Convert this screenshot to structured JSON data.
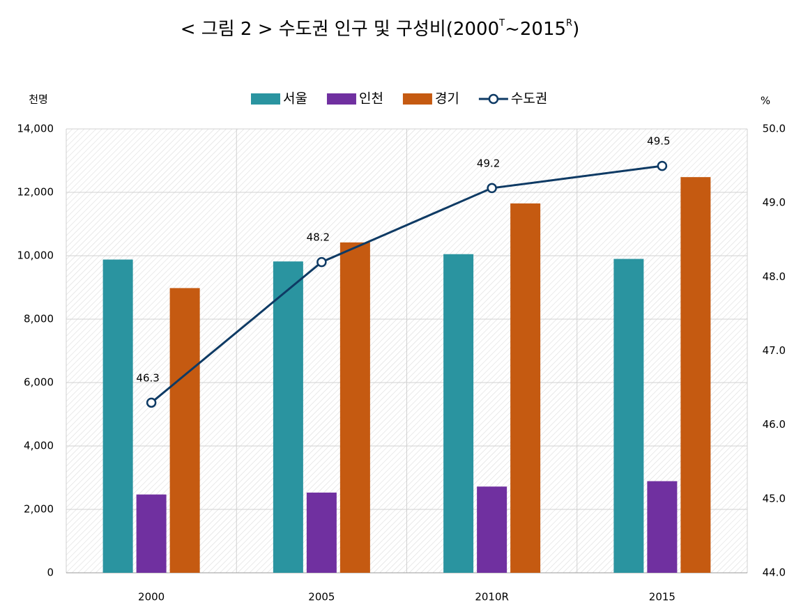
{
  "chart_data": {
    "type": "bar_line",
    "title": [
      "< 그림 2 > 수도권 인구 및 구성비(2000",
      "T",
      "~2015",
      "R",
      ")"
    ],
    "y_label": "천명",
    "y2_label": "%",
    "categories": [
      "2000",
      "2005",
      "2010R",
      "2015"
    ],
    "series": [
      {
        "name": "서울",
        "type": "bar",
        "color": "#2a94a0",
        "values": [
          9880,
          9820,
          10050,
          9900
        ]
      },
      {
        "name": "인천",
        "type": "bar",
        "color": "#7030a0",
        "values": [
          2470,
          2530,
          2720,
          2890
        ]
      },
      {
        "name": "경기",
        "type": "bar",
        "color": "#c55a11",
        "values": [
          8980,
          10420,
          11650,
          12480
        ]
      },
      {
        "name": "수도권",
        "type": "line",
        "axis": "y2",
        "color": "#0e3a64",
        "values": [
          46.3,
          48.2,
          49.2,
          49.5
        ]
      }
    ],
    "ylim": [
      0,
      14000
    ],
    "yticks": [
      0,
      {
        "value": 2000,
        "label": "2,000"
      },
      {
        "value": 4000,
        "label": "4,000"
      },
      {
        "value": 6000,
        "label": "6,000"
      },
      {
        "value": 8000,
        "label": "8,000"
      },
      {
        "value": 10000,
        "label": "10,000"
      },
      {
        "value": 12000,
        "label": "12,000"
      },
      {
        "value": 14000,
        "label": "14,000"
      }
    ],
    "y2lim": [
      44,
      50
    ],
    "y2ticks": [
      {
        "value": 44,
        "label": "44.0"
      },
      {
        "value": 45,
        "label": "45.0"
      },
      {
        "value": 46,
        "label": "46.0"
      },
      {
        "value": 47,
        "label": "47.0"
      },
      {
        "value": 48,
        "label": "48.0"
      },
      {
        "value": 49,
        "label": "49.0"
      },
      {
        "value": 50,
        "label": "50.0"
      }
    ],
    "grid": true,
    "legend": "top"
  }
}
